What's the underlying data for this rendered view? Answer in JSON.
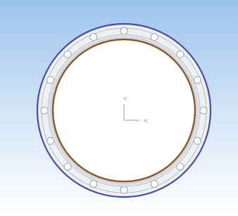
{
  "viewport": {
    "axis_x_label": "XC",
    "axis_y_label": "YC"
  }
}
